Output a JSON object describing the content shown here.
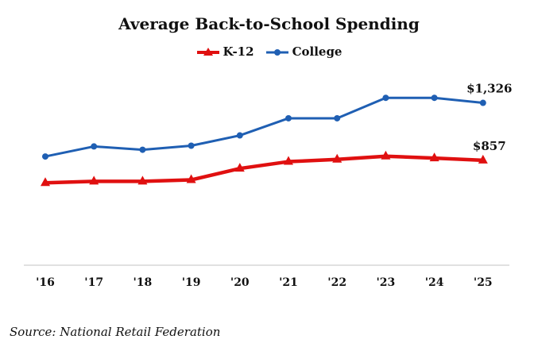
{
  "chart_data": {
    "type": "line",
    "title": "Average Back-to-School Spending",
    "categories": [
      "'16",
      "'17",
      "'18",
      "'19",
      "'20",
      "'21",
      "'22",
      "'23",
      "'24",
      "'25"
    ],
    "series": [
      {
        "name": "K-12",
        "color": "#e01010",
        "marker": "triangle",
        "values": [
          673,
          685,
          685,
          697,
          790,
          846,
          864,
          890,
          875,
          857
        ],
        "end_label": "$857"
      },
      {
        "name": "College",
        "color": "#1f5fb3",
        "marker": "circle",
        "values": [
          888,
          970,
          943,
          976,
          1060,
          1200,
          1200,
          1367,
          1367,
          1326
        ],
        "end_label": "$1,326"
      }
    ],
    "xlabel": "",
    "ylabel": "",
    "ylim": [
      0,
      1550
    ],
    "grid": false,
    "legend": "top-center",
    "source": "Source: National Retail Federation"
  }
}
